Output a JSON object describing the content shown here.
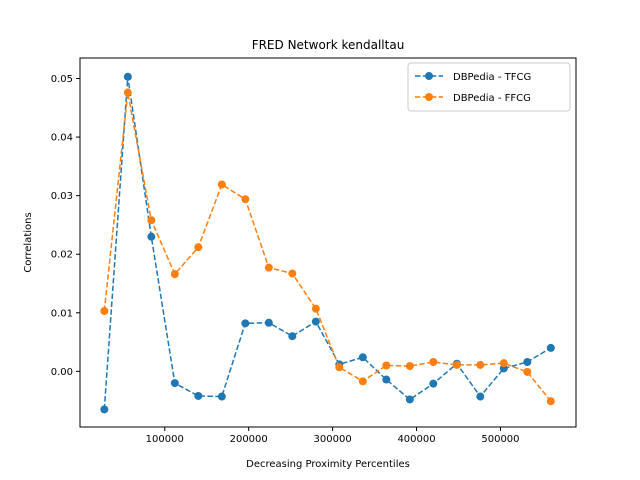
{
  "chart_data": {
    "type": "line",
    "title": "FRED Network kendalltau",
    "xlabel": "Decreasing Proximity Percentiles",
    "ylabel": "Correlations",
    "xlim": [
      -1000,
      590000
    ],
    "ylim": [
      -0.0095,
      0.0535
    ],
    "xticks": [
      100000,
      200000,
      300000,
      400000,
      500000
    ],
    "yticks": [
      0.0,
      0.01,
      0.02,
      0.03,
      0.04,
      0.05
    ],
    "ytick_labels": [
      "0.00",
      "0.01",
      "0.02",
      "0.03",
      "0.04",
      "0.05"
    ],
    "grid": false,
    "legend_position": "top-right",
    "x": [
      28000,
      56000,
      84000,
      112000,
      140000,
      168000,
      196000,
      224000,
      252000,
      280000,
      308000,
      336000,
      364000,
      392000,
      420000,
      448000,
      476000,
      504000,
      532000,
      560000
    ],
    "series": [
      {
        "name": "DBPedia - TFCG",
        "color": "#1f77b4",
        "line_style": "dashed",
        "marker": "circle",
        "values": [
          -0.0065,
          0.0503,
          0.023,
          -0.002,
          -0.0042,
          -0.0043,
          0.0082,
          0.0083,
          0.006,
          0.0085,
          0.0012,
          0.0024,
          -0.0014,
          -0.0048,
          -0.0021,
          0.0013,
          -0.0043,
          0.0005,
          0.0016,
          0.004
        ]
      },
      {
        "name": "DBPedia - FFCG",
        "color": "#ff7f0e",
        "line_style": "dashed",
        "marker": "circle",
        "values": [
          0.0103,
          0.0476,
          0.0258,
          0.0166,
          0.0212,
          0.0319,
          0.0294,
          0.0177,
          0.0167,
          0.0107,
          0.0007,
          -0.0017,
          0.001,
          0.0009,
          0.0016,
          0.0011,
          0.0011,
          0.0014,
          -0.0001,
          -0.0051
        ]
      }
    ]
  }
}
